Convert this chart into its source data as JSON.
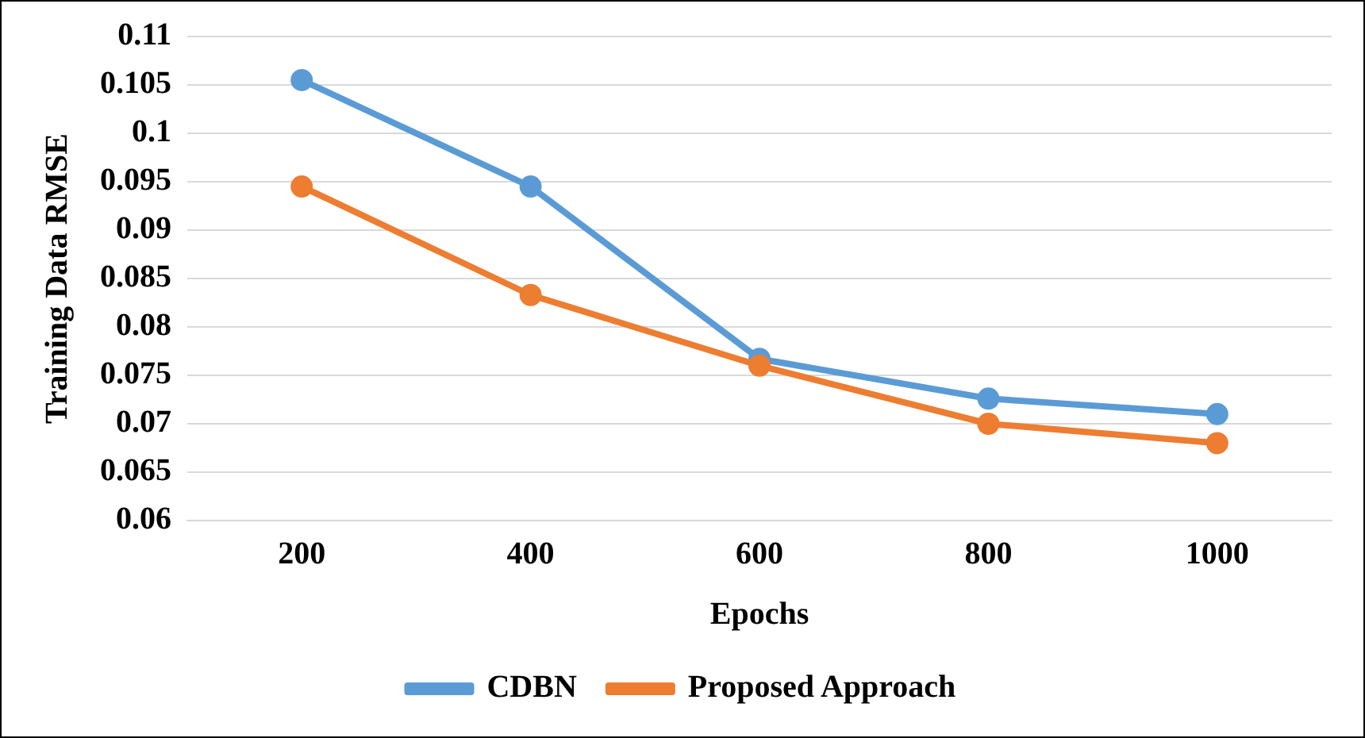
{
  "chart_data": {
    "type": "line",
    "xlabel": "Epochs",
    "ylabel": "Training Data RMSE",
    "categories": [
      "200",
      "400",
      "600",
      "800",
      "1000"
    ],
    "series": [
      {
        "name": "CDBN",
        "color": "#5b9bd5",
        "values": [
          0.1055,
          0.0945,
          0.0767,
          0.0726,
          0.071
        ]
      },
      {
        "name": "Proposed Approach",
        "color": "#ed7d31",
        "values": [
          0.0945,
          0.0833,
          0.076,
          0.07,
          0.068
        ]
      }
    ],
    "ylim": [
      0.06,
      0.11
    ],
    "yticks": [
      0.06,
      0.065,
      0.07,
      0.075,
      0.08,
      0.085,
      0.09,
      0.095,
      0.1,
      0.105,
      0.11
    ],
    "grid": "y",
    "legend": "bottom",
    "marker": "circle",
    "line_style": "solid"
  }
}
